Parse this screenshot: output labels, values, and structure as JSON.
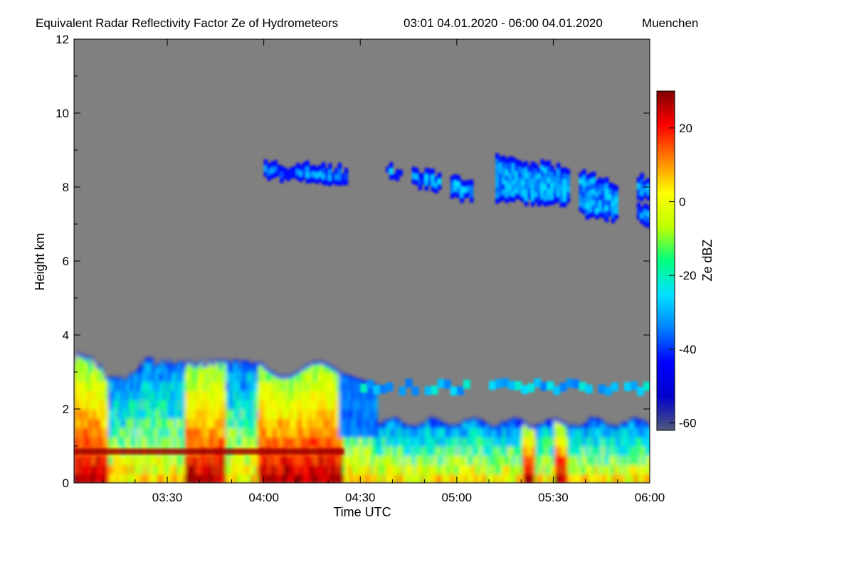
{
  "chart_data": {
    "type": "heatmap",
    "title": "Equivalent Radar Reflectivity Factor Ze of Hydrometeors",
    "time_range": "03:01 04.01.2020 - 06:00 04.01.2020",
    "location": "Muenchen",
    "xlabel": "Time UTC",
    "ylabel": "Height km",
    "xlim": [
      "03:01",
      "06:00"
    ],
    "xticks": [
      "03:30",
      "04:00",
      "04:30",
      "05:00",
      "05:30",
      "06:00"
    ],
    "ylim": [
      0,
      12
    ],
    "yticks": [
      "0",
      "2",
      "4",
      "6",
      "8",
      "10",
      "12"
    ],
    "colorbar": {
      "label": "Ze dBZ",
      "range": [
        -62,
        30
      ],
      "ticks": [
        "20",
        "0",
        "-20",
        "-40",
        "-60"
      ],
      "colors": [
        "#505a78",
        "#0000cc",
        "#0000ff",
        "#0080ff",
        "#00e0ff",
        "#00ff80",
        "#c0ff00",
        "#ffff00",
        "#ff8000",
        "#ff0000",
        "#800000"
      ]
    },
    "background_color": "#808080",
    "features": [
      {
        "name": "low-level precipitation layer",
        "time_start": "03:01",
        "time_end": "06:00",
        "height_top_km": 3.3,
        "ze_dbz_range": [
          -45,
          28
        ]
      },
      {
        "name": "bright band near melting level",
        "time_start": "03:01",
        "time_end": "04:25",
        "height_km": 0.85,
        "ze_dbz_range": [
          20,
          28
        ]
      },
      {
        "name": "mid-level thin cloud layer",
        "time_start": "04:30",
        "time_end": "06:00",
        "height_km": 2.6,
        "ze_dbz_range": [
          -35,
          -20
        ]
      },
      {
        "name": "upper-level cirrus",
        "time_start": "04:00",
        "time_end": "06:00",
        "height_range_km": [
          6.8,
          9.0
        ],
        "ze_dbz_range": [
          -40,
          -25
        ]
      }
    ]
  }
}
